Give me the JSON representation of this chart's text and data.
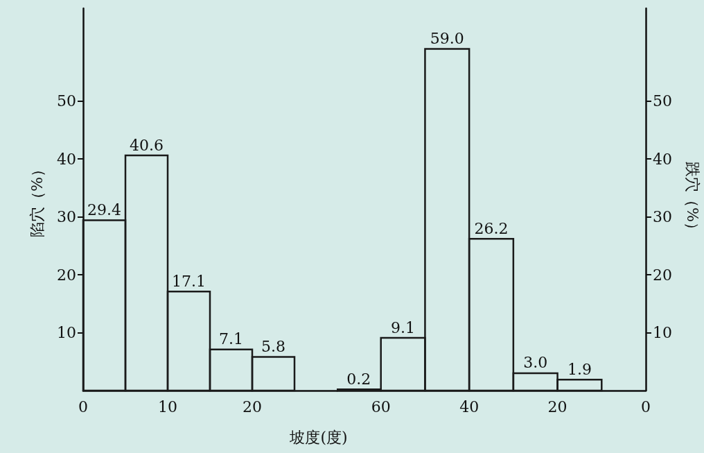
{
  "chart_data": [
    {
      "type": "histogram",
      "xlabel": "坡度(度)",
      "ylabel": "陷穴（%）",
      "bins": [
        0,
        5,
        10,
        15,
        20,
        25
      ],
      "values": [
        29.4,
        40.6,
        17.1,
        7.1,
        5.8
      ],
      "color": "#1a1a1a",
      "xlim": [
        0,
        30
      ],
      "xticks": [
        0,
        10,
        20
      ],
      "ylim": [
        0,
        66
      ],
      "yticks": [
        10,
        20,
        30,
        40,
        50
      ],
      "value_labels": [
        "29.4",
        "40.6",
        "17.1",
        "7.1",
        "5.8"
      ],
      "grid": false
    },
    {
      "type": "histogram",
      "ylabel": "跌穴（%）",
      "bins": [
        70,
        60,
        50,
        40,
        30,
        20,
        10
      ],
      "values": [
        0.2,
        9.1,
        59.0,
        26.2,
        3.0,
        1.9
      ],
      "color": "#1a1a1a",
      "xlim": [
        70,
        0
      ],
      "xticks": [
        60,
        40,
        20,
        0
      ],
      "ylim": [
        0,
        66
      ],
      "yticks": [
        10,
        20,
        30,
        40,
        50
      ],
      "value_labels": [
        "0.2",
        "9.1",
        "59.0",
        "26.2",
        "3.0",
        "1.9"
      ],
      "grid": false
    }
  ]
}
